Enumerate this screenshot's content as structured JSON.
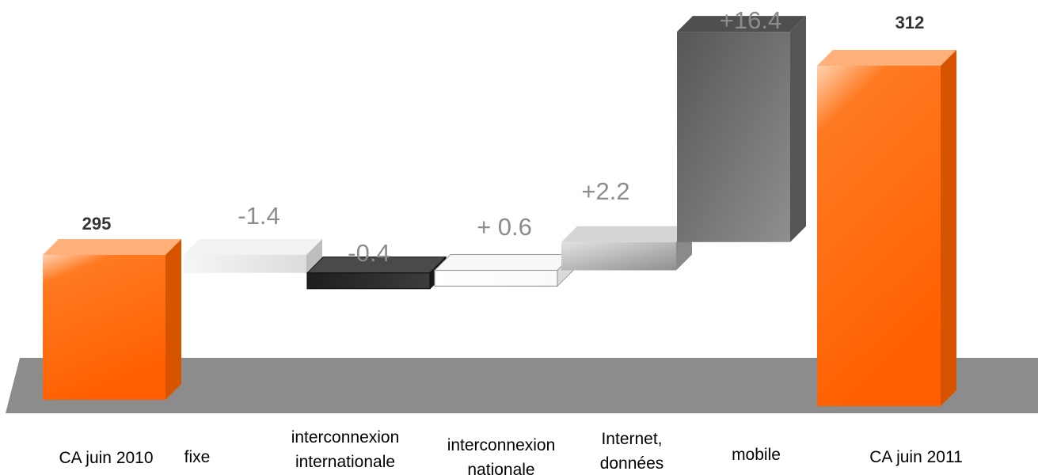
{
  "chart_data": {
    "type": "bar",
    "variant": "waterfall",
    "title": "",
    "xlabel": "",
    "ylabel": "",
    "categories": [
      "CA juin 2010",
      "fixe",
      "interconnexion internationale",
      "interconnexion nationale",
      "Internet, données",
      "mobile",
      "CA juin 2011"
    ],
    "category_lines": [
      [
        "CA juin 2010"
      ],
      [
        "fixe"
      ],
      [
        "interconnexion",
        "internationale"
      ],
      [
        "interconnexion",
        "nationale"
      ],
      [
        "Internet,",
        "données"
      ],
      [
        "mobile"
      ],
      [
        "CA juin 2011"
      ]
    ],
    "values": [
      295,
      -1.4,
      -0.4,
      0.6,
      2.2,
      16.4,
      312
    ],
    "bar_kinds": [
      "total",
      "delta",
      "delta",
      "delta",
      "delta",
      "delta",
      "total"
    ],
    "value_labels": [
      "295",
      "-1.4",
      "-0.4",
      "+ 0.6",
      "+2.2",
      "+16.4",
      "312"
    ],
    "grid": false,
    "legend": "none"
  },
  "colors": {
    "total_front": "#ff6a0d",
    "total_top": "#ffb07a",
    "total_side": "#d65400",
    "fixe_front": "#eaeaea",
    "intl_front": "#2d2d2d",
    "national_front": "#ffffff",
    "internet_front": "#b3b3b3",
    "mobile_front": "#6f6f6f",
    "floor": "#8c8c8c"
  }
}
